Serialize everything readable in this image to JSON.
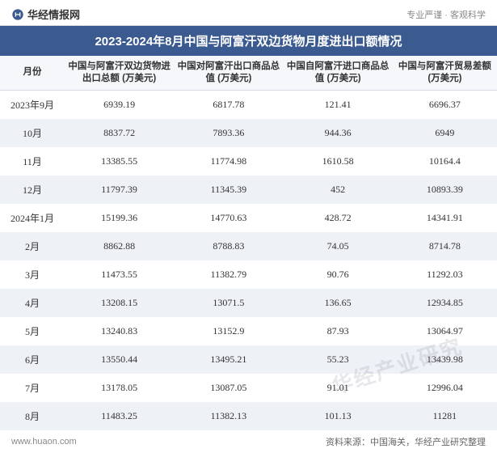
{
  "header": {
    "logo_text": "华经情报网",
    "tagline": "专业严谨 · 客观科学"
  },
  "title": "2023-2024年8月中国与阿富汗双边货物月度进出口额情况",
  "table": {
    "columns": [
      "月份",
      "中国与阿富汗双边货物进出口总额\n(万美元)",
      "中国对阿富汗出口商品总值\n(万美元)",
      "中国自阿富汗进口商品总值\n(万美元)",
      "中国与阿富汗贸易差额\n(万美元)"
    ],
    "column_widths_pct": [
      13,
      22,
      22,
      22,
      21
    ],
    "rows": [
      [
        "2023年9月",
        "6939.19",
        "6817.78",
        "121.41",
        "6696.37"
      ],
      [
        "10月",
        "8837.72",
        "7893.36",
        "944.36",
        "6949"
      ],
      [
        "11月",
        "13385.55",
        "11774.98",
        "1610.58",
        "10164.4"
      ],
      [
        "12月",
        "11797.39",
        "11345.39",
        "452",
        "10893.39"
      ],
      [
        "2024年1月",
        "15199.36",
        "14770.63",
        "428.72",
        "14341.91"
      ],
      [
        "2月",
        "8862.88",
        "8788.83",
        "74.05",
        "8714.78"
      ],
      [
        "3月",
        "11473.55",
        "11382.79",
        "90.76",
        "11292.03"
      ],
      [
        "4月",
        "13208.15",
        "13071.5",
        "136.65",
        "12934.85"
      ],
      [
        "5月",
        "13240.83",
        "13152.9",
        "87.93",
        "13064.97"
      ],
      [
        "6月",
        "13550.44",
        "13495.21",
        "55.23",
        "13439.98"
      ],
      [
        "7月",
        "13178.05",
        "13087.05",
        "91.01",
        "12996.04"
      ],
      [
        "8月",
        "11483.25",
        "11382.13",
        "101.13",
        "11281"
      ]
    ],
    "header_bg": "#f5f7fa",
    "row_even_bg": "#eef1f6",
    "row_odd_bg": "#ffffff",
    "title_bg": "#3b5a8f",
    "title_color": "#ffffff",
    "font_size_body": 12,
    "font_size_header": 11.5,
    "font_size_title": 15
  },
  "footer": {
    "left": "www.huaon.com",
    "right": "资料来源：中国海关，华经产业研究整理"
  },
  "watermark": "华经产业研究"
}
